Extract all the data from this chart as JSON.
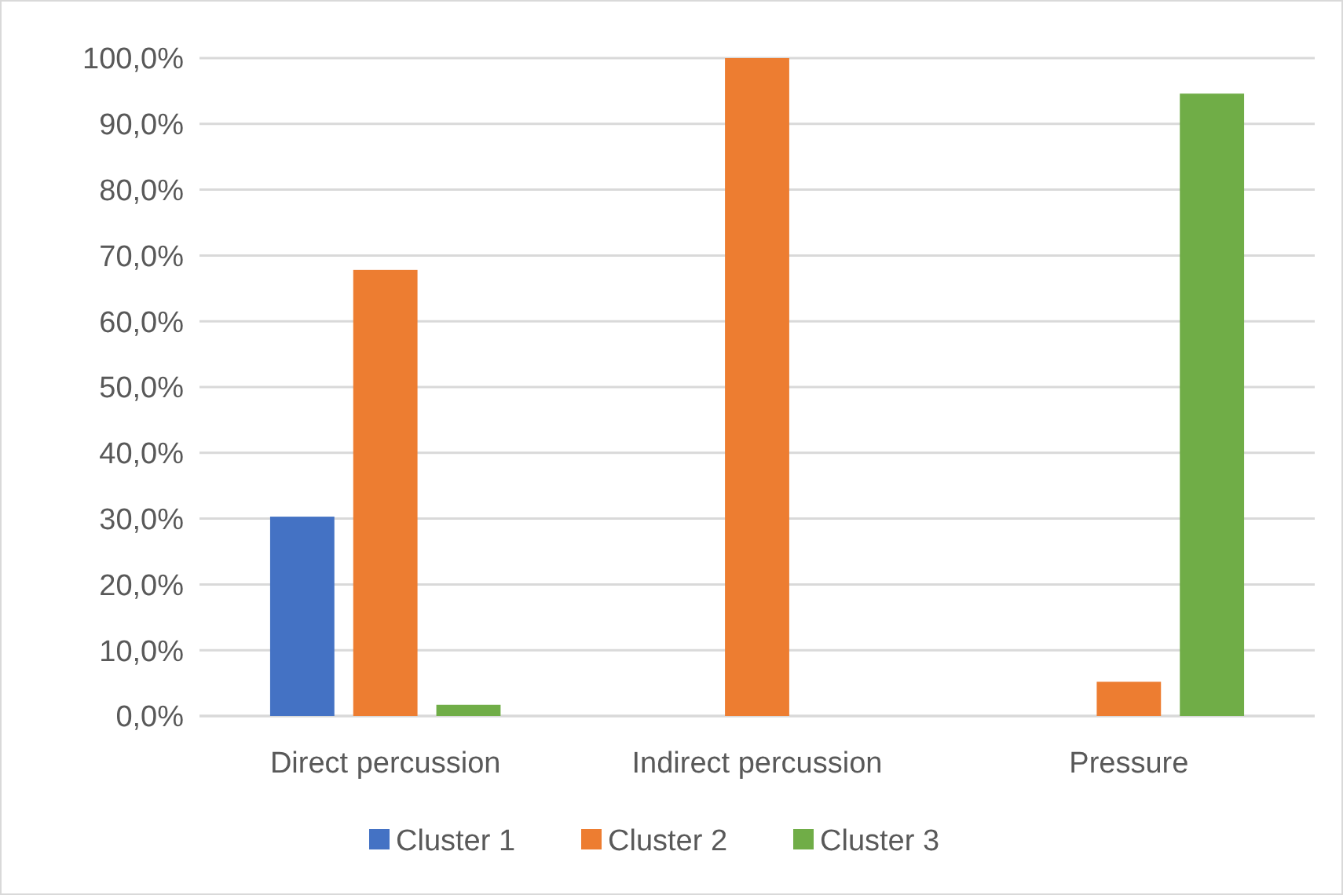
{
  "chart_data": {
    "type": "bar",
    "categories": [
      "Direct percussion",
      "Indirect percussion",
      "Pressure"
    ],
    "series": [
      {
        "name": "Cluster 1",
        "color": "#4472c4",
        "values": [
          30.3,
          0,
          0
        ]
      },
      {
        "name": "Cluster 2",
        "color": "#ed7d31",
        "values": [
          67.8,
          100,
          5.2
        ]
      },
      {
        "name": "Cluster 3",
        "color": "#70ad47",
        "values": [
          1.7,
          0,
          94.6
        ]
      }
    ],
    "ylim": [
      0,
      100
    ],
    "yticks": [
      {
        "value": 0,
        "label": "0,0%"
      },
      {
        "value": 10,
        "label": "10,0%"
      },
      {
        "value": 20,
        "label": "20,0%"
      },
      {
        "value": 30,
        "label": "30,0%"
      },
      {
        "value": 40,
        "label": "40,0%"
      },
      {
        "value": 50,
        "label": "50,0%"
      },
      {
        "value": 60,
        "label": "60,0%"
      },
      {
        "value": 70,
        "label": "70,0%"
      },
      {
        "value": 80,
        "label": "80,0%"
      },
      {
        "value": 90,
        "label": "90,0%"
      },
      {
        "value": 100,
        "label": "100,0%"
      }
    ],
    "grid": "y",
    "legend": "bottom"
  }
}
